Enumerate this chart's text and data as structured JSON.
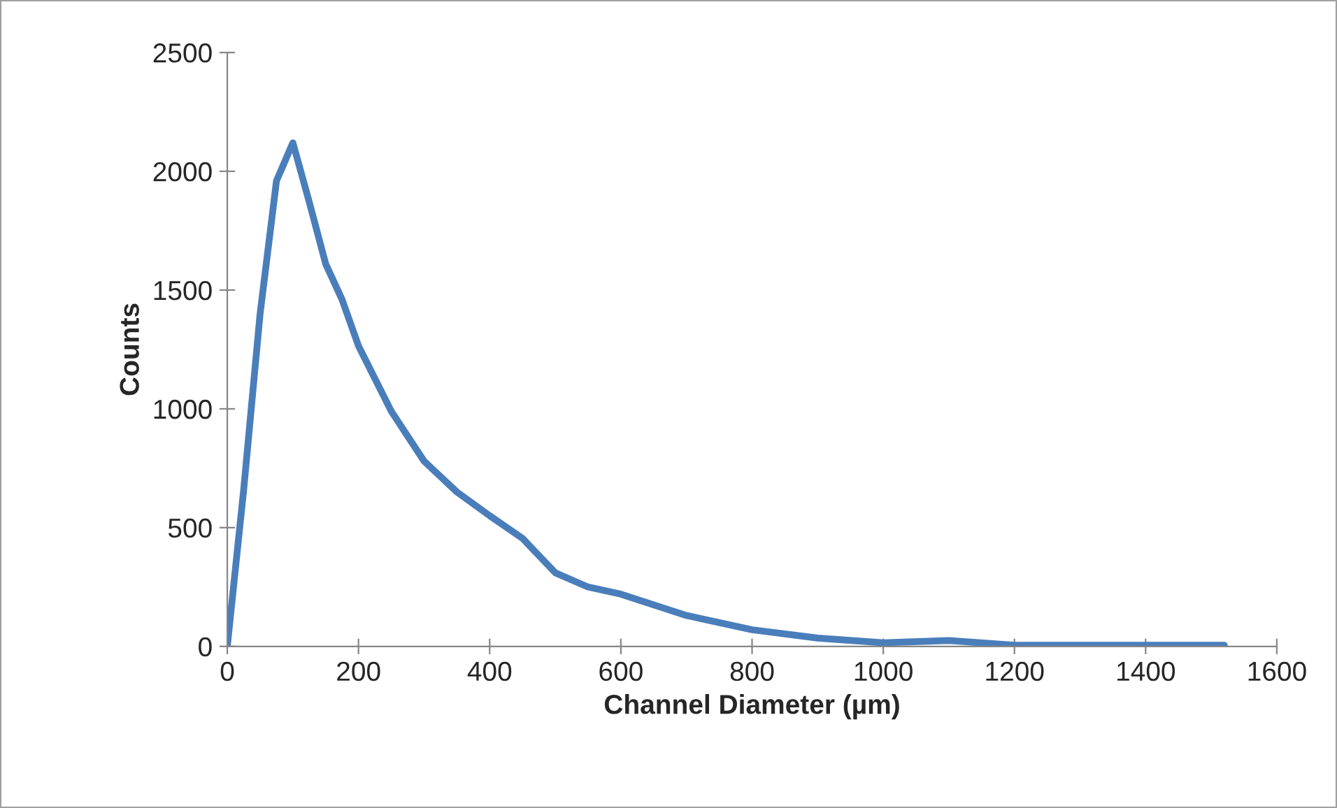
{
  "chart_data": {
    "type": "line",
    "xlabel": "Channel Diameter (µm)",
    "ylabel": "Counts",
    "series": [
      {
        "color": "#4a7ebb",
        "x": [
          0,
          25,
          50,
          75,
          100,
          125,
          150,
          175,
          200,
          250,
          300,
          350,
          400,
          450,
          500,
          550,
          600,
          700,
          800,
          900,
          1000,
          1100,
          1200,
          1520
        ],
        "values": [
          0,
          660,
          1400,
          1960,
          2120,
          1870,
          1610,
          1460,
          1265,
          990,
          780,
          650,
          550,
          455,
          310,
          250,
          220,
          130,
          70,
          35,
          15,
          25,
          5,
          5
        ]
      }
    ],
    "xlim": [
      0,
      1600
    ],
    "xticks": [
      0,
      200,
      400,
      600,
      800,
      1000,
      1200,
      1400,
      1600
    ],
    "ylim": [
      0,
      2500
    ],
    "yticks": [
      0,
      500,
      1000,
      1500,
      2000,
      2500
    ],
    "grid": false,
    "legend": false,
    "marker": "none",
    "line_style": "solid"
  }
}
